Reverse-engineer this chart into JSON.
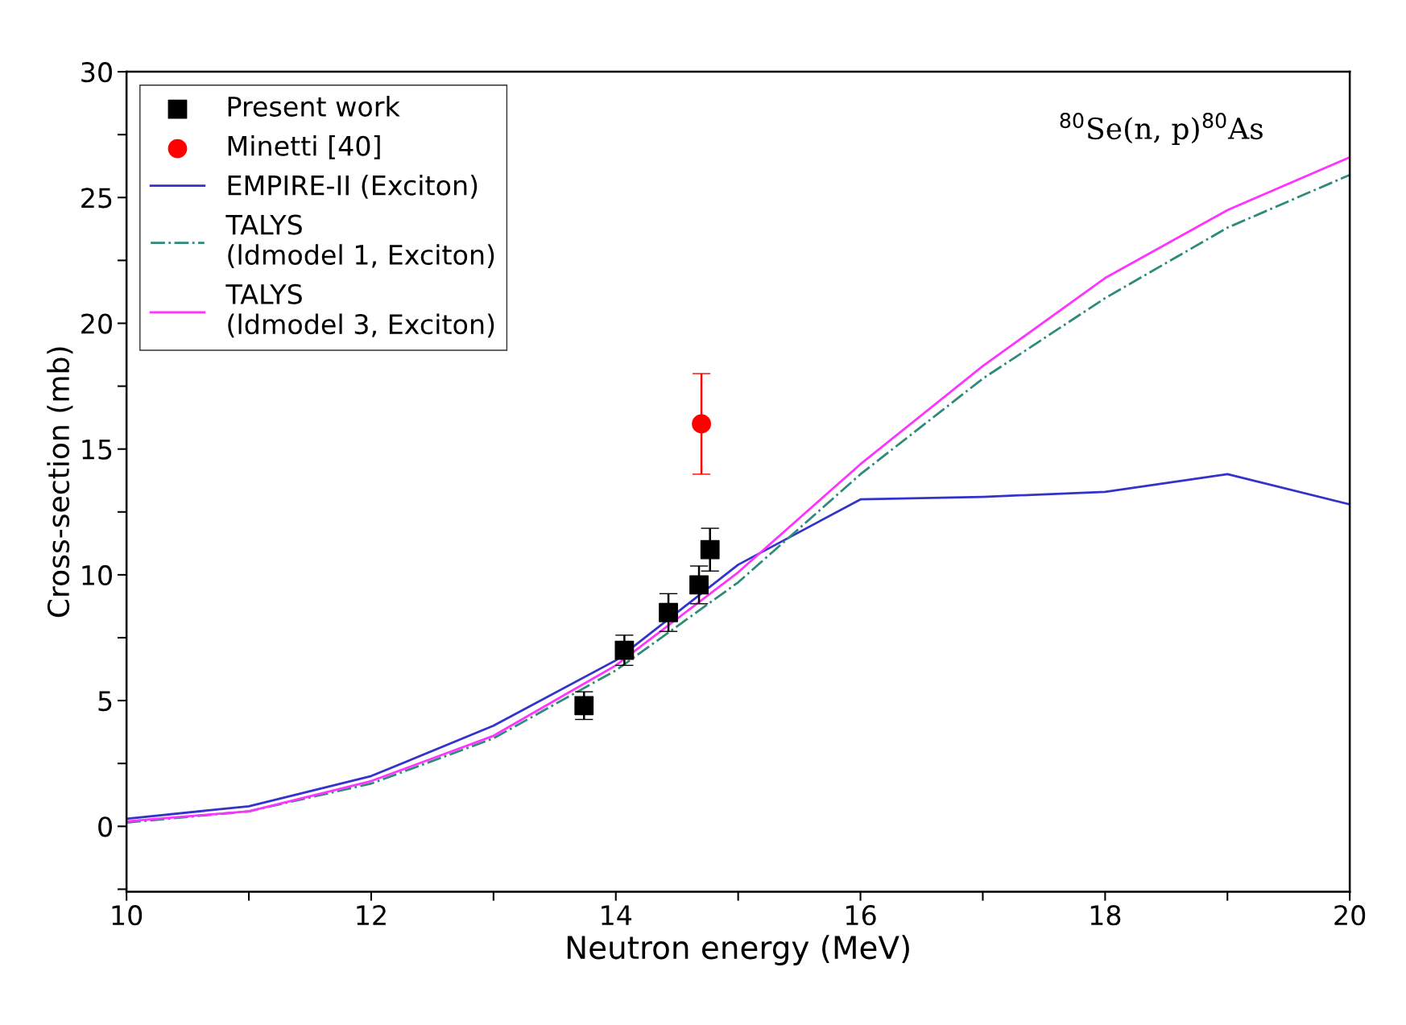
{
  "chart_data": {
    "type": "line",
    "xlabel": "Neutron energy (MeV)",
    "ylabel": "Cross-section (mb)",
    "annotations": [
      "$^{80}$Se(n, p)$^{80}$As"
    ],
    "xlim": [
      10,
      20
    ],
    "ylim": [
      -2.6,
      30
    ],
    "xticks": [
      10,
      {
        "value": 11,
        "label": null
      },
      12,
      {
        "value": 13,
        "label": null
      },
      14,
      {
        "value": 15,
        "label": null
      },
      16,
      {
        "value": 17,
        "label": null
      },
      18,
      {
        "value": 19,
        "label": null
      },
      20
    ],
    "yticks": [
      {
        "value": -2.5,
        "label": null
      },
      0,
      {
        "value": 2.5,
        "label": null
      },
      5,
      {
        "value": 7.5,
        "label": null
      },
      10,
      {
        "value": 12.5,
        "label": null
      },
      15,
      {
        "value": 17.5,
        "label": null
      },
      20,
      {
        "value": 22.5,
        "label": null
      },
      25,
      {
        "value": 27.5,
        "label": null
      },
      30
    ],
    "grid": false,
    "legend": "top left",
    "series": [
      {
        "name": "Present work",
        "type": "scatter",
        "marker": "square",
        "color": "#000000",
        "x": [
          13.74,
          14.07,
          14.43,
          14.68,
          14.77
        ],
        "values": [
          4.8,
          7.0,
          8.5,
          9.6,
          11.0
        ],
        "errors": [
          0.55,
          0.6,
          0.75,
          0.75,
          0.85
        ]
      },
      {
        "name": "Minetti [40]",
        "type": "scatter",
        "marker": "circle",
        "color": "#ff0000",
        "x": [
          14.7
        ],
        "values": [
          16.0
        ],
        "errors": [
          2.0
        ]
      },
      {
        "name": "EMPIRE-II (Exciton)",
        "color": "#3333cc",
        "line_style": "solid",
        "x": [
          10,
          11,
          12,
          13,
          14,
          15,
          16,
          17,
          18,
          19,
          20
        ],
        "values": [
          0.3,
          0.8,
          2.0,
          4.0,
          6.6,
          10.4,
          13.0,
          13.1,
          13.3,
          14.0,
          12.8
        ]
      },
      {
        "name": "TALYS\n(ldmodel 1, Exciton)",
        "color": "#2e8b7a",
        "line_style": "dashdot",
        "x": [
          10,
          11,
          12,
          13,
          14,
          15,
          16,
          17,
          18,
          19,
          20
        ],
        "values": [
          0.15,
          0.6,
          1.7,
          3.5,
          6.2,
          9.7,
          14.0,
          17.8,
          21.0,
          23.8,
          25.9
        ]
      },
      {
        "name": "TALYS\n(ldmodel 3, Exciton)",
        "color": "#ff33ff",
        "line_style": "solid",
        "x": [
          10,
          11,
          12,
          13,
          14,
          15,
          16,
          17,
          18,
          19,
          20
        ],
        "values": [
          0.2,
          0.6,
          1.8,
          3.6,
          6.4,
          10.1,
          14.4,
          18.3,
          21.8,
          24.5,
          26.6
        ]
      }
    ]
  }
}
